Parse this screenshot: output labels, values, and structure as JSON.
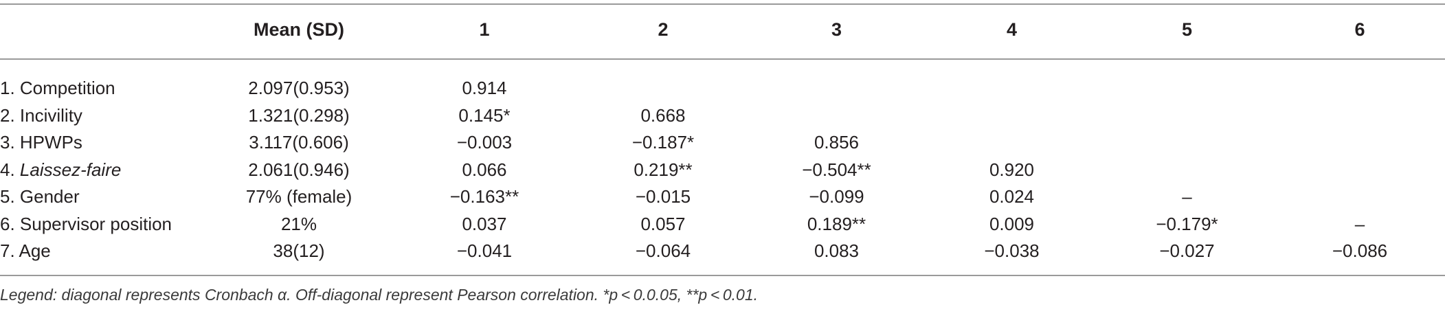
{
  "table": {
    "headers": [
      "",
      "Mean (SD)",
      "1",
      "2",
      "3",
      "4",
      "5",
      "6"
    ],
    "rows": [
      {
        "label": "1. Competition",
        "italic_part": "",
        "mean": "2.097(0.953)",
        "cells": [
          "0.914",
          "",
          "",
          "",
          "",
          ""
        ]
      },
      {
        "label": "2. Incivility",
        "italic_part": "",
        "mean": "1.321(0.298)",
        "cells": [
          "0.145*",
          "0.668",
          "",
          "",
          "",
          ""
        ]
      },
      {
        "label": "3. HPWPs",
        "italic_part": "",
        "mean": "3.117(0.606)",
        "cells": [
          "−0.003",
          "−0.187*",
          "0.856",
          "",
          "",
          ""
        ]
      },
      {
        "label": "4. ",
        "italic_part": "Laissez-faire",
        "mean": "2.061(0.946)",
        "cells": [
          "0.066",
          "0.219**",
          "−0.504**",
          "0.920",
          "",
          ""
        ]
      },
      {
        "label": "5. Gender",
        "italic_part": "",
        "mean": "77% (female)",
        "cells": [
          "−0.163**",
          "−0.015",
          "−0.099",
          "0.024",
          "–",
          ""
        ]
      },
      {
        "label": "6. Supervisor position",
        "italic_part": "",
        "mean": "21%",
        "cells": [
          "0.037",
          "0.057",
          "0.189**",
          "0.009",
          "−0.179*",
          "–"
        ]
      },
      {
        "label": "7. Age",
        "italic_part": "",
        "mean": "38(12)",
        "cells": [
          "−0.041",
          "−0.064",
          "0.083",
          "−0.038",
          "−0.027",
          "−0.086"
        ]
      }
    ]
  },
  "footnote": "Legend: diagonal represents Cronbach α. Off-diagonal represent Pearson correlation. *p < 0.0.05, **p < 0.01."
}
